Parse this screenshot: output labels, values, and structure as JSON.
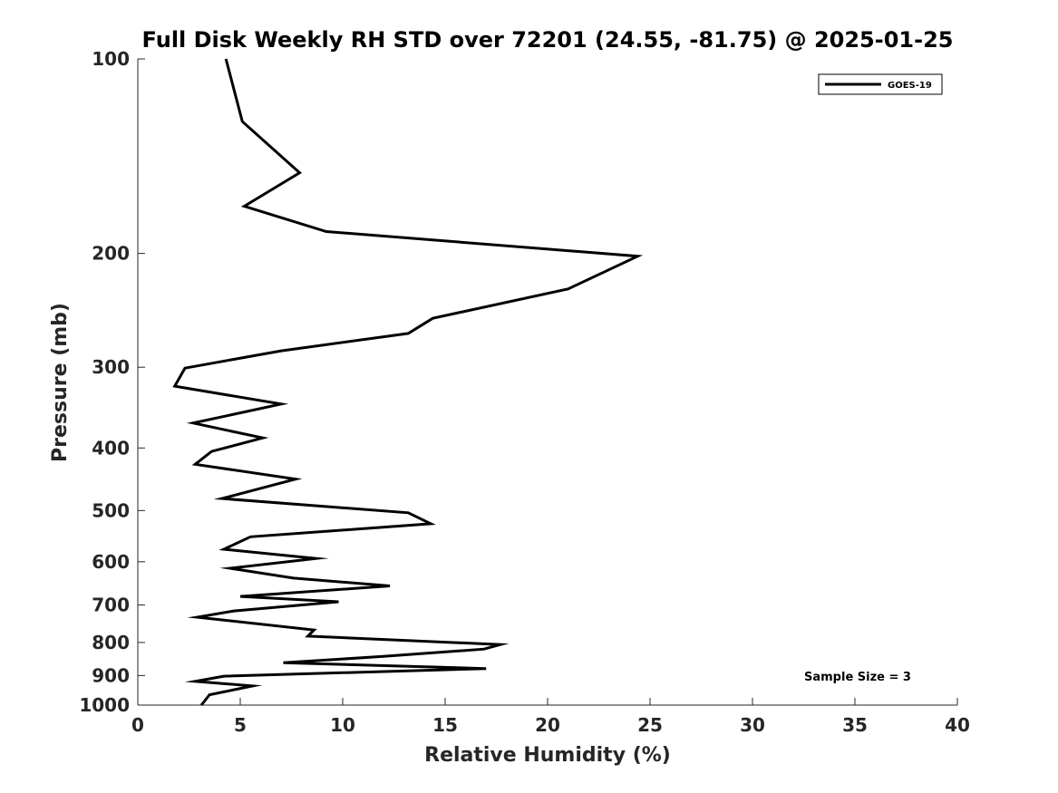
{
  "chart_data": {
    "type": "line",
    "title": "Full Disk Weekly RH STD over 72201 (24.55, -81.75) @ 2025-01-25",
    "xlabel": "Relative Humidity (%)",
    "ylabel": "Pressure (mb)",
    "xlim": [
      0,
      40
    ],
    "ylim": [
      100,
      1000
    ],
    "y_scale": "log",
    "y_reversed": true,
    "x_ticks": [
      0,
      5,
      10,
      15,
      20,
      25,
      30,
      35,
      40
    ],
    "y_ticks": [
      100,
      200,
      300,
      400,
      500,
      600,
      700,
      800,
      900,
      1000
    ],
    "grid": false,
    "legend_position": "top-right",
    "annotation": "Sample Size = 3",
    "series": [
      {
        "name": "GOES-19",
        "color": "#000000",
        "points": [
          [
            4.3,
            100
          ],
          [
            5.1,
            125
          ],
          [
            7.9,
            150
          ],
          [
            5.2,
            169
          ],
          [
            9.2,
            185
          ],
          [
            24.4,
            202
          ],
          [
            21.0,
            227
          ],
          [
            14.4,
            252
          ],
          [
            13.2,
            266
          ],
          [
            7.0,
            283
          ],
          [
            2.3,
            301
          ],
          [
            1.8,
            321
          ],
          [
            7.0,
            342
          ],
          [
            2.7,
            366
          ],
          [
            6.1,
            386
          ],
          [
            3.6,
            405
          ],
          [
            2.8,
            424
          ],
          [
            7.7,
            447
          ],
          [
            4.1,
            479
          ],
          [
            13.2,
            504
          ],
          [
            14.3,
            524
          ],
          [
            5.5,
            549
          ],
          [
            4.2,
            574
          ],
          [
            8.7,
            593
          ],
          [
            4.5,
            614
          ],
          [
            7.6,
            636
          ],
          [
            12.3,
            654
          ],
          [
            5.0,
            679
          ],
          [
            9.8,
            692
          ],
          [
            4.7,
            715
          ],
          [
            2.9,
            731
          ],
          [
            8.6,
            765
          ],
          [
            8.3,
            782
          ],
          [
            17.7,
            806
          ],
          [
            16.9,
            819
          ],
          [
            11.9,
            841
          ],
          [
            7.1,
            860
          ],
          [
            17.0,
            878
          ],
          [
            4.2,
            902
          ],
          [
            2.8,
            919
          ],
          [
            5.6,
            934
          ],
          [
            3.5,
            964
          ],
          [
            3.1,
            1000
          ]
        ]
      }
    ]
  }
}
